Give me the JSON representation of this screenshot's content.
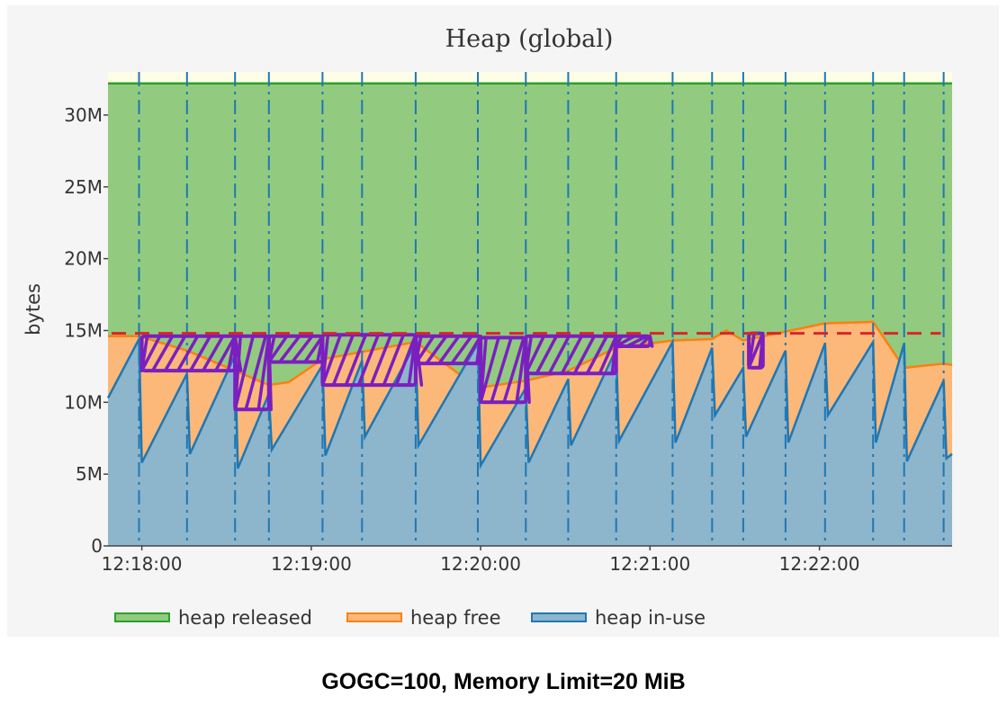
{
  "chart_data": {
    "type": "area",
    "title": "Heap (global)",
    "xlabel": "",
    "ylabel": "bytes",
    "caption": "GOGC=100, Memory Limit=20 MiB",
    "ylim": [
      0,
      33
    ],
    "xlim": [
      "12:17:48",
      "12:22:47"
    ],
    "y_ticks": [
      {
        "v": 0,
        "label": "0"
      },
      {
        "v": 5,
        "label": "5M"
      },
      {
        "v": 10,
        "label": "10M"
      },
      {
        "v": 15,
        "label": "15M"
      },
      {
        "v": 20,
        "label": "20M"
      },
      {
        "v": 25,
        "label": "25M"
      },
      {
        "v": 30,
        "label": "30M"
      }
    ],
    "x_ticks": [
      {
        "t": "12:18:00",
        "label": "12:18:00"
      },
      {
        "t": "12:19:00",
        "label": "12:19:00"
      },
      {
        "t": "12:20:00",
        "label": "12:20:00"
      },
      {
        "t": "12:21:00",
        "label": "12:21:00"
      },
      {
        "t": "12:22:00",
        "label": "12:22:00"
      }
    ],
    "legend": {
      "placement": "bottom",
      "items": [
        "heap released",
        "heap free",
        "heap in-use"
      ]
    },
    "colors": {
      "released_fill": "#92cb7f",
      "released_line": "#2ca02c",
      "free_fill": "#fcb878",
      "free_line": "#ff7f0e",
      "inuse_fill": "#8db5cc",
      "inuse_line": "#1f77b4",
      "limit_line": "#d62728",
      "annotation": "#7a1fc0",
      "top_band": "#fefee6"
    },
    "gc_events": [
      "12:17:59",
      "12:18:16",
      "12:18:33",
      "12:18:45",
      "12:19:04",
      "12:19:18",
      "12:19:37",
      "12:19:59",
      "12:20:16",
      "12:20:31",
      "12:20:48",
      "12:21:08",
      "12:21:22",
      "12:21:33",
      "12:21:48",
      "12:22:02",
      "12:22:19",
      "12:22:30",
      "12:22:44"
    ],
    "series": [
      {
        "name": "heap released",
        "x": [
          "12:17:48",
          "12:22:47"
        ],
        "values": [
          32.2,
          32.2
        ]
      },
      {
        "name": "heap free",
        "x": [
          "12:17:48",
          "12:17:59",
          "12:18:16",
          "12:18:45",
          "12:18:52",
          "12:19:04",
          "12:19:37",
          "12:19:59",
          "12:20:16",
          "12:20:31",
          "12:20:48",
          "12:21:08",
          "12:21:22",
          "12:21:27",
          "12:21:33",
          "12:22:02",
          "12:22:19",
          "12:22:30",
          "12:22:44",
          "12:22:47"
        ],
        "values": [
          14.6,
          14.6,
          13.6,
          11.2,
          11.4,
          13.0,
          14.2,
          11.0,
          11.5,
          12.2,
          13.8,
          14.3,
          14.4,
          15.0,
          14.3,
          15.5,
          15.6,
          12.4,
          12.7,
          12.6
        ]
      },
      {
        "name": "heap in-use",
        "x": [
          "12:17:48",
          "12:17:59",
          "12:18:00",
          "12:18:16",
          "12:18:17",
          "12:18:33",
          "12:18:34",
          "12:18:45",
          "12:18:46",
          "12:19:04",
          "12:19:05",
          "12:19:18",
          "12:19:19",
          "12:19:37",
          "12:19:38",
          "12:19:59",
          "12:20:00",
          "12:20:16",
          "12:20:17",
          "12:20:31",
          "12:20:32",
          "12:20:48",
          "12:20:49",
          "12:21:08",
          "12:21:09",
          "12:21:22",
          "12:21:23",
          "12:21:33",
          "12:21:34",
          "12:21:48",
          "12:21:49",
          "12:22:02",
          "12:22:03",
          "12:22:19",
          "12:22:20",
          "12:22:30",
          "12:22:31",
          "12:22:44",
          "12:22:45",
          "12:22:47"
        ],
        "values": [
          10.3,
          14.4,
          5.8,
          12.0,
          6.4,
          13.3,
          5.4,
          10.6,
          6.7,
          12.6,
          6.3,
          12.9,
          7.6,
          14.1,
          7.0,
          14.1,
          5.6,
          11.0,
          5.8,
          11.6,
          7.0,
          13.7,
          7.3,
          14.2,
          7.2,
          13.8,
          9.1,
          12.4,
          7.6,
          13.6,
          7.2,
          14.1,
          9.1,
          14.2,
          7.2,
          14.1,
          5.9,
          11.5,
          6.1,
          6.4
        ]
      }
    ],
    "memory_limit_level": 14.8,
    "annotated_regions": [
      {
        "t0": "12:18:00",
        "t1": "12:18:33",
        "lo": 12.2,
        "hi": 14.6
      },
      {
        "t0": "12:18:33",
        "t1": "12:18:45",
        "lo": 9.5,
        "hi": 14.6
      },
      {
        "t0": "12:18:45",
        "t1": "12:19:04",
        "lo": 12.8,
        "hi": 14.6
      },
      {
        "t0": "12:19:04",
        "t1": "12:19:37",
        "lo": 11.2,
        "hi": 14.7
      },
      {
        "t0": "12:19:37",
        "t1": "12:20:00",
        "lo": 12.7,
        "hi": 14.6
      },
      {
        "t0": "12:20:00",
        "t1": "12:20:16",
        "lo": 10.0,
        "hi": 14.5
      },
      {
        "t0": "12:20:16",
        "t1": "12:20:48",
        "lo": 12.0,
        "hi": 14.6
      },
      {
        "t0": "12:20:48",
        "t1": "12:21:00",
        "lo": 13.9,
        "hi": 14.6
      },
      {
        "t0": "12:21:35",
        "t1": "12:21:40",
        "lo": 12.4,
        "hi": 14.8
      }
    ]
  }
}
